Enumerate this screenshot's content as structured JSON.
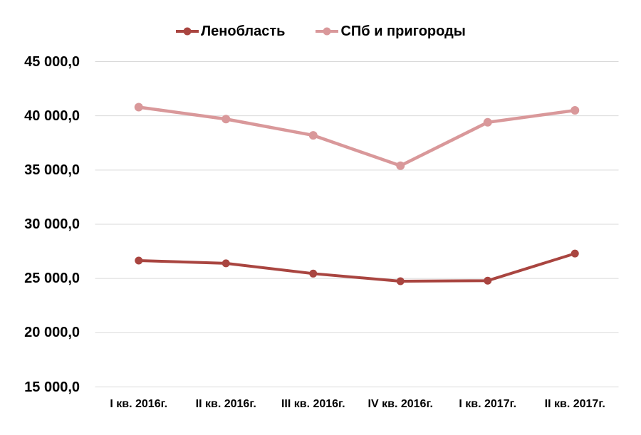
{
  "chart_data": {
    "type": "line",
    "title": "",
    "xlabel": "",
    "ylabel": "",
    "categories": [
      "I кв. 2016г.",
      "II кв. 2016г.",
      "III кв. 2016г.",
      "IV кв. 2016г.",
      "I кв. 2017г.",
      "II кв. 2017г."
    ],
    "series": [
      {
        "name": "Ленобласть",
        "color": "#A94540",
        "marker": "circle",
        "values": [
          26650,
          26400,
          25450,
          24750,
          24800,
          27300
        ]
      },
      {
        "name": "СПб и пригороды",
        "color": "#D9989A",
        "marker": "circle",
        "values": [
          40800,
          39700,
          38200,
          35400,
          39400,
          40500
        ]
      }
    ],
    "ylim": [
      15000,
      45000
    ],
    "y_ticks": [
      {
        "value": 45000,
        "label": "45 000,0"
      },
      {
        "value": 40000,
        "label": "40 000,0"
      },
      {
        "value": 35000,
        "label": "35 000,0"
      },
      {
        "value": 30000,
        "label": "30 000,0"
      },
      {
        "value": 25000,
        "label": "25 000,0"
      },
      {
        "value": 20000,
        "label": "20 000,0"
      },
      {
        "value": 15000,
        "label": "15 000,0"
      }
    ],
    "grid": true,
    "gridline_color": "#D9D9D9",
    "text_color": "#000000",
    "background_color": "#FFFFFF",
    "legend_position": "top"
  }
}
